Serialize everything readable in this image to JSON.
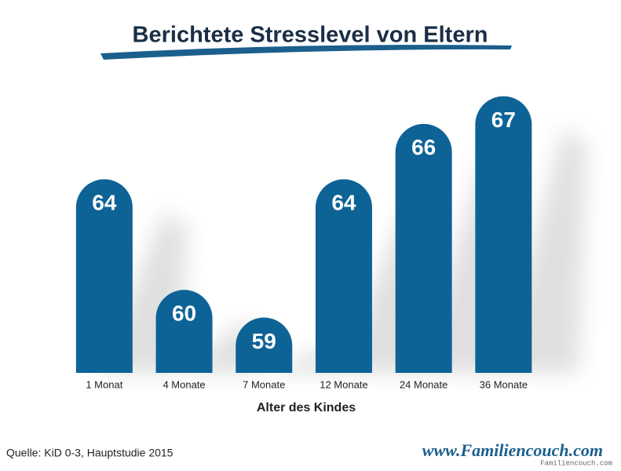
{
  "chart_data": {
    "type": "bar",
    "title": "Berichtete Stresslevel von Eltern",
    "categories": [
      "1 Monat",
      "4 Monate",
      "7 Monate",
      "12 Monate",
      "24 Monate",
      "36 Monate"
    ],
    "values": [
      64,
      60,
      59,
      64,
      66,
      67
    ],
    "color": "#0d6396",
    "ylim": [
      57,
      67.5
    ],
    "x_label": "Alter des Kindes",
    "source": "Quelle: KiD 0-3, Hauptstudie 2015",
    "website": "www.Familiencouch.com",
    "watermark": "Familiencouch.com"
  }
}
